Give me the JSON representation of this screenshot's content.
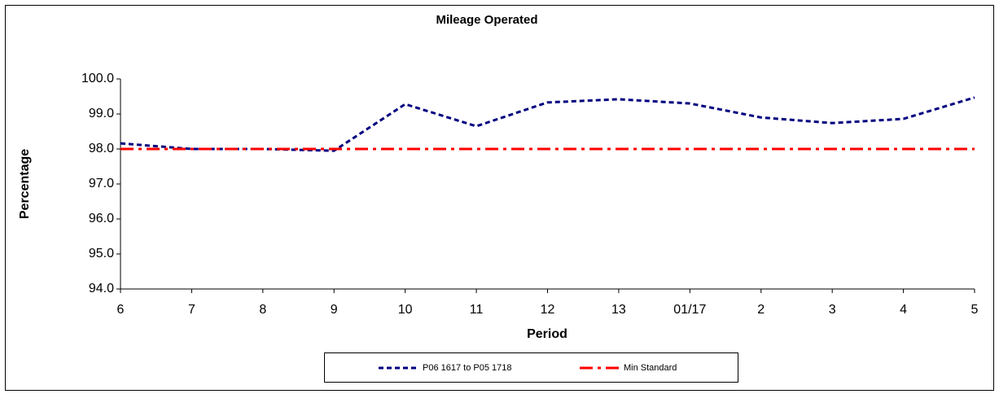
{
  "chart_data": {
    "type": "line",
    "title": "Mileage Operated",
    "x_label": "Period",
    "y_label": "Percentage",
    "categories": [
      "6",
      "7",
      "8",
      "9",
      "10",
      "11",
      "12",
      "13",
      "01/17",
      "2",
      "3",
      "4",
      "5"
    ],
    "series": [
      {
        "name": "P06 1617 to P05 1718",
        "color": "#000080",
        "dash": "6,4",
        "values": [
          98.16,
          98.0,
          98.0,
          97.95,
          99.28,
          98.65,
          99.33,
          99.42,
          99.3,
          98.9,
          98.74,
          98.86,
          99.47
        ]
      },
      {
        "name": "Min Standard",
        "color": "#ff0000",
        "dash": "16,6,4,6",
        "values": [
          98,
          98,
          98,
          98,
          98,
          98,
          98,
          98,
          98,
          98,
          98,
          98,
          98
        ]
      }
    ],
    "ylim": [
      94,
      100
    ],
    "yticks": [
      {
        "value": 94,
        "label": "94.0"
      },
      {
        "value": 95,
        "label": "95.0"
      },
      {
        "value": 96,
        "label": "96.0"
      },
      {
        "value": 97,
        "label": "97.0"
      },
      {
        "value": 98,
        "label": "98.0"
      },
      {
        "value": 99,
        "label": "99.0"
      },
      {
        "value": 100,
        "label": "100.0"
      }
    ],
    "grid": false,
    "legend": "bottom"
  }
}
